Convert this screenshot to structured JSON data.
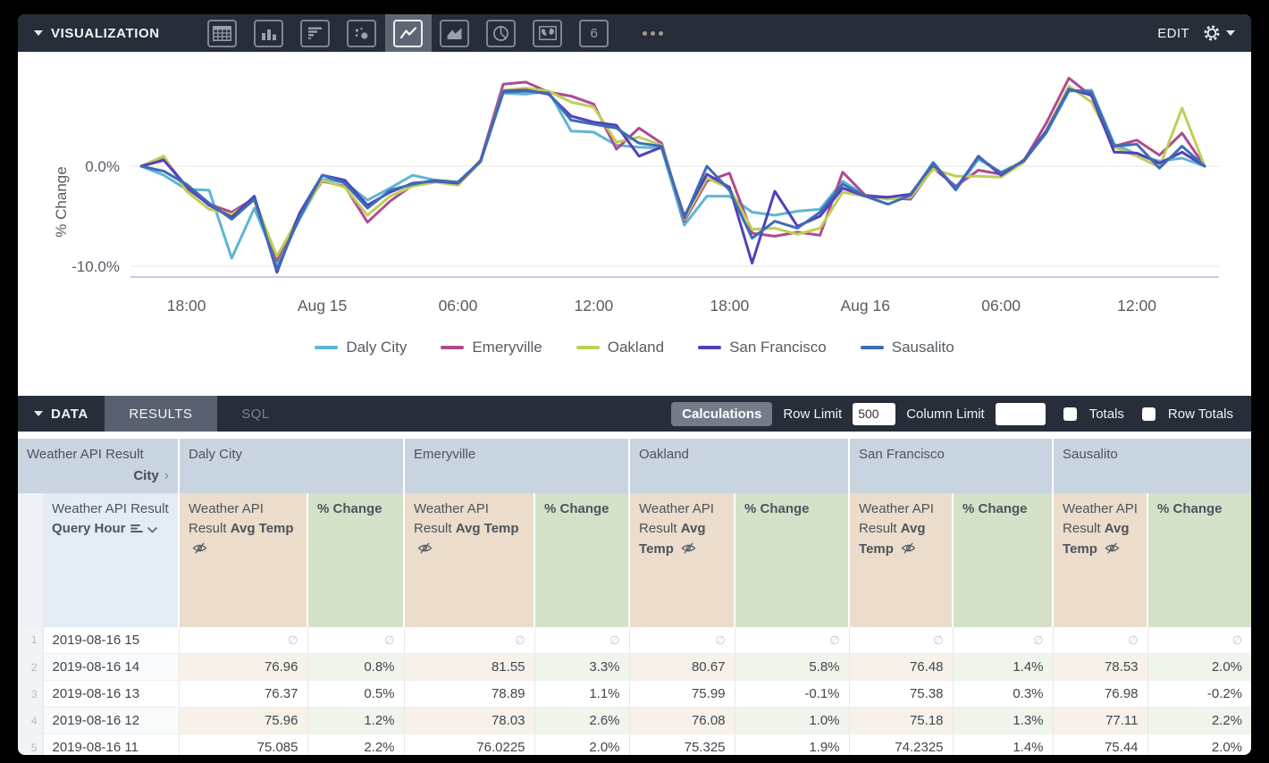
{
  "visualization_bar": {
    "title": "VISUALIZATION",
    "edit_label": "EDIT",
    "chart_types": [
      {
        "name": "table",
        "selected": false
      },
      {
        "name": "column",
        "selected": false
      },
      {
        "name": "bar",
        "selected": false
      },
      {
        "name": "scatter",
        "selected": false
      },
      {
        "name": "line",
        "selected": true
      },
      {
        "name": "area",
        "selected": false
      },
      {
        "name": "pie",
        "selected": false
      },
      {
        "name": "map",
        "selected": false
      },
      {
        "name": "single-value",
        "selected": false
      }
    ],
    "single_value_glyph": "6"
  },
  "chart_data": {
    "type": "line",
    "ylabel": "% Change",
    "ylim": [
      -11.5,
      10.2
    ],
    "y_ticks": [
      {
        "value": 0,
        "label": "0.0%"
      },
      {
        "value": -10,
        "label": "-10.0%"
      }
    ],
    "x_hours_span": 48,
    "x_tick_positions": [
      2,
      8,
      14,
      20,
      26,
      32,
      38,
      44
    ],
    "x_tick_labels": [
      "18:00",
      "Aug 15",
      "06:00",
      "12:00",
      "18:00",
      "Aug 16",
      "06:00",
      "12:00"
    ],
    "legend_position": "bottom",
    "grid": true,
    "series": [
      {
        "name": "Daly City",
        "color": "#5fb5d5",
        "values": [
          0,
          -0.9,
          -2.3,
          -2.4,
          -9.2,
          -4.2,
          -9.7,
          -5.3,
          -1.3,
          -1.6,
          -3.4,
          -2.2,
          -0.9,
          -1.4,
          -1.6,
          0.5,
          7.3,
          7.2,
          7.5,
          3.5,
          3.4,
          2.1,
          1.9,
          1.8,
          -5.9,
          -3,
          -3,
          -4.6,
          -4.9,
          -4.5,
          -4.3,
          -1.5,
          -2.9,
          -3.1,
          -2.9,
          0.4,
          -2.4,
          0.7,
          -0.6,
          0.5,
          3.3,
          7.5,
          7.6,
          2.2,
          1.2,
          0.5,
          0.8,
          0
        ]
      },
      {
        "name": "Emeryville",
        "color": "#ad4b92",
        "values": [
          0,
          0.9,
          -2.2,
          -3.8,
          -4.6,
          -3.2,
          -9.4,
          -4.8,
          -1.5,
          -2,
          -5.6,
          -3.5,
          -1.9,
          -1.5,
          -1.8,
          0.6,
          8.2,
          8.4,
          7.4,
          7,
          6.2,
          1.7,
          3.8,
          2.3,
          -5.5,
          -1.5,
          -0.7,
          -6.7,
          -7,
          -6.6,
          -6.9,
          -0.6,
          -2.9,
          -3.2,
          -3.3,
          -0.2,
          -2,
          -0.4,
          -0.8,
          0.5,
          4.3,
          8.8,
          7,
          2,
          2.6,
          1.1,
          3.3,
          0
        ]
      },
      {
        "name": "Oakland",
        "color": "#bfce55",
        "values": [
          0,
          1,
          -2.5,
          -4.3,
          -4.8,
          -3.4,
          -9,
          -5,
          -1.4,
          -2.1,
          -4.9,
          -3,
          -2,
          -1.6,
          -1.9,
          0.4,
          7.6,
          7.8,
          7.5,
          6.4,
          5.9,
          2.4,
          2.9,
          2.1,
          -5.3,
          -1.2,
          -2.2,
          -6.3,
          -6.2,
          -6.8,
          -6.2,
          -2.6,
          -3,
          -3.3,
          -3.1,
          -0.3,
          -1,
          -1,
          -1.1,
          0.4,
          3.6,
          8,
          6.4,
          1.9,
          1,
          -0.1,
          5.8,
          0
        ]
      },
      {
        "name": "San Francisco",
        "color": "#5240bb",
        "values": [
          0,
          0.6,
          -2,
          -3.9,
          -5.1,
          -3,
          -10.6,
          -4.7,
          -0.9,
          -1.4,
          -3.9,
          -2.6,
          -1.7,
          -1.5,
          -1.7,
          0.5,
          7.5,
          7.6,
          7.2,
          5,
          4.4,
          4.1,
          1,
          1.9,
          -5,
          -0.8,
          -2.1,
          -9.7,
          -2.5,
          -6,
          -5,
          -2.2,
          -3,
          -3.1,
          -2.8,
          0.2,
          -2.3,
          1,
          -0.9,
          0.6,
          3.5,
          7.7,
          7.1,
          1.4,
          1.3,
          0.3,
          1.4,
          0
        ]
      },
      {
        "name": "Sausalito",
        "color": "#3e6cb5",
        "values": [
          0,
          -0.5,
          -1.8,
          -3.7,
          -5.3,
          -3.3,
          -10.3,
          -5.1,
          -0.9,
          -1.7,
          -4.2,
          -2.4,
          -1.8,
          -1.4,
          -1.6,
          0.5,
          7.4,
          7.5,
          7.3,
          4.6,
          4.2,
          3.8,
          2.3,
          2,
          -5.2,
          0,
          -2.4,
          -7.2,
          -5.5,
          -6.2,
          -4.6,
          -1.8,
          -3,
          -3.8,
          -2.9,
          0.3,
          -2.2,
          0.9,
          -0.7,
          0.5,
          3.4,
          7.6,
          7.4,
          2,
          2.2,
          -0.2,
          2,
          0
        ]
      }
    ]
  },
  "data_bar": {
    "title": "DATA",
    "tabs": [
      {
        "label": "RESULTS",
        "active": true
      },
      {
        "label": "SQL",
        "active": false
      }
    ],
    "calculations_label": "Calculations",
    "row_limit_label": "Row Limit",
    "row_limit_value": "500",
    "column_limit_label": "Column Limit",
    "column_limit_value": "",
    "totals_label": "Totals",
    "row_totals_label": "Row Totals",
    "totals_checked": false,
    "row_totals_checked": false
  },
  "table": {
    "pivot_field": {
      "prefix": "Weather API Result",
      "name": "City"
    },
    "cities": [
      "Daly City",
      "Emeryville",
      "Oakland",
      "San Francisco",
      "Sausalito"
    ],
    "row_field": {
      "prefix": "Weather API Result",
      "name": "Query Hour"
    },
    "measure_field": {
      "prefix": "Weather API Result",
      "name": "Avg Temp"
    },
    "calc_field": "% Change",
    "null_symbol": "∅",
    "rows": [
      {
        "n": 1,
        "hour": "2019-08-16 15",
        "values": [
          null,
          null,
          null,
          null,
          null,
          null,
          null,
          null,
          null,
          null
        ]
      },
      {
        "n": 2,
        "hour": "2019-08-16 14",
        "values": [
          "76.96",
          "0.8%",
          "81.55",
          "3.3%",
          "80.67",
          "5.8%",
          "76.48",
          "1.4%",
          "78.53",
          "2.0%"
        ]
      },
      {
        "n": 3,
        "hour": "2019-08-16 13",
        "values": [
          "76.37",
          "0.5%",
          "78.89",
          "1.1%",
          "75.99",
          "-0.1%",
          "75.38",
          "0.3%",
          "76.98",
          "-0.2%"
        ]
      },
      {
        "n": 4,
        "hour": "2019-08-16 12",
        "values": [
          "75.96",
          "1.2%",
          "78.03",
          "2.6%",
          "76.08",
          "1.0%",
          "75.18",
          "1.3%",
          "77.11",
          "2.2%"
        ]
      },
      {
        "n": 5,
        "hour": "2019-08-16 11",
        "values": [
          "75.085",
          "2.2%",
          "76.0225",
          "2.0%",
          "75.325",
          "1.9%",
          "74.2325",
          "1.4%",
          "75.44",
          "2.0%"
        ]
      }
    ]
  }
}
